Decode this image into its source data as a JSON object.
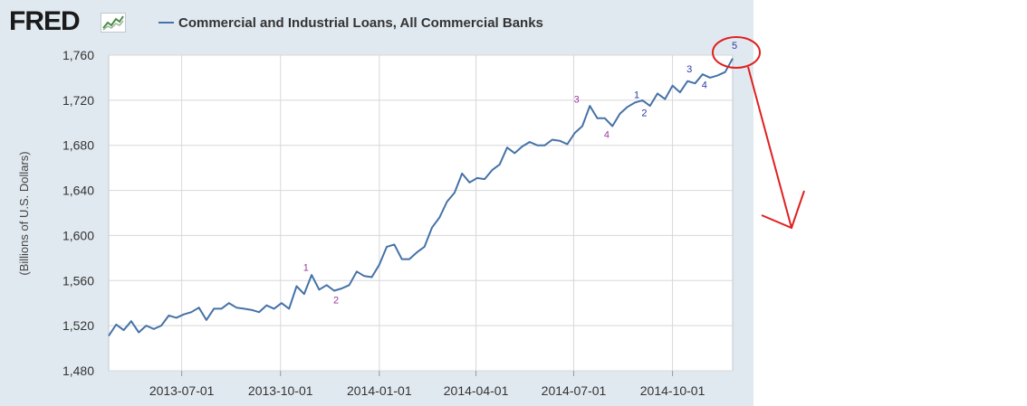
{
  "header": {
    "logo_text": "FRED",
    "legend_label": "Commercial and Industrial Loans, All Commercial Banks"
  },
  "colors": {
    "series": "#4572a7",
    "panel": "#e1e9f0",
    "annotation_purple": "#9b3a9b",
    "annotation_blue": "#2b3aa0",
    "annotation_red": "#e02020"
  },
  "chart_data": {
    "type": "line",
    "title": "",
    "xlabel": "",
    "ylabel": "(Billions of U.S. Dollars)",
    "ylim": [
      1480,
      1760
    ],
    "xlim": [
      "2013-04-24",
      "2014-11-26"
    ],
    "yticks": [
      "1,480",
      "1,520",
      "1,560",
      "1,600",
      "1,640",
      "1,680",
      "1,720",
      "1,760"
    ],
    "xticks": [
      "2013-07-01",
      "2013-10-01",
      "2014-01-01",
      "2014-04-01",
      "2014-07-01",
      "2014-10-01"
    ],
    "grid": true,
    "legend_position": "top",
    "series": [
      {
        "name": "Commercial and Industrial Loans, All Commercial Banks",
        "x": [
          "2013-04-24",
          "2013-05-01",
          "2013-05-08",
          "2013-05-15",
          "2013-05-22",
          "2013-05-29",
          "2013-06-05",
          "2013-06-12",
          "2013-06-19",
          "2013-06-26",
          "2013-07-03",
          "2013-07-10",
          "2013-07-17",
          "2013-07-24",
          "2013-07-31",
          "2013-08-07",
          "2013-08-14",
          "2013-08-21",
          "2013-08-28",
          "2013-09-04",
          "2013-09-11",
          "2013-09-18",
          "2013-09-25",
          "2013-10-02",
          "2013-10-09",
          "2013-10-16",
          "2013-10-23",
          "2013-10-30",
          "2013-11-06",
          "2013-11-13",
          "2013-11-20",
          "2013-11-27",
          "2013-12-04",
          "2013-12-11",
          "2013-12-18",
          "2013-12-25",
          "2014-01-01",
          "2014-01-08",
          "2014-01-15",
          "2014-01-22",
          "2014-01-29",
          "2014-02-05",
          "2014-02-12",
          "2014-02-19",
          "2014-02-26",
          "2014-03-05",
          "2014-03-12",
          "2014-03-19",
          "2014-03-26",
          "2014-04-02",
          "2014-04-09",
          "2014-04-16",
          "2014-04-23",
          "2014-04-30",
          "2014-05-07",
          "2014-05-14",
          "2014-05-21",
          "2014-05-28",
          "2014-06-04",
          "2014-06-11",
          "2014-06-18",
          "2014-06-25",
          "2014-07-02",
          "2014-07-09",
          "2014-07-16",
          "2014-07-23",
          "2014-07-30",
          "2014-08-06",
          "2014-08-13",
          "2014-08-20",
          "2014-08-27",
          "2014-09-03",
          "2014-09-10",
          "2014-09-17",
          "2014-09-24",
          "2014-10-01",
          "2014-10-08",
          "2014-10-15",
          "2014-10-22",
          "2014-10-29",
          "2014-11-05",
          "2014-11-12",
          "2014-11-19",
          "2014-11-26"
        ],
        "values": [
          1511,
          1521,
          1516,
          1524,
          1514,
          1520,
          1517,
          1520,
          1529,
          1527,
          1530,
          1532,
          1536,
          1525,
          1535,
          1535,
          1540,
          1536,
          1535,
          1534,
          1532,
          1538,
          1535,
          1540,
          1535,
          1555,
          1548,
          1565,
          1552,
          1556,
          1551,
          1553,
          1556,
          1568,
          1564,
          1563,
          1574,
          1590,
          1592,
          1579,
          1579,
          1585,
          1590,
          1607,
          1616,
          1630,
          1638,
          1655,
          1647,
          1651,
          1650,
          1658,
          1663,
          1678,
          1673,
          1679,
          1683,
          1680,
          1680,
          1685,
          1684,
          1681,
          1691,
          1697,
          1715,
          1704,
          1704,
          1697,
          1708,
          1714,
          1718,
          1720,
          1715,
          1726,
          1721,
          1733,
          1727,
          1737,
          1735,
          1743,
          1740,
          1742,
          1745,
          1757
        ]
      }
    ],
    "annotations": [
      {
        "text": "1",
        "x": "2013-10-23",
        "y": 1572,
        "color": "purple"
      },
      {
        "text": "2",
        "x": "2013-11-20",
        "y": 1543,
        "color": "purple"
      },
      {
        "text": "3",
        "x": "2014-07-02",
        "y": 1721,
        "color": "purple"
      },
      {
        "text": "4",
        "x": "2014-07-30",
        "y": 1690,
        "color": "purple"
      },
      {
        "text": "1",
        "x": "2014-08-27",
        "y": 1725,
        "color": "blue"
      },
      {
        "text": "2",
        "x": "2014-09-03",
        "y": 1709,
        "color": "blue"
      },
      {
        "text": "3",
        "x": "2014-10-15",
        "y": 1748,
        "color": "blue"
      },
      {
        "text": "4",
        "x": "2014-10-29",
        "y": 1734,
        "color": "blue"
      },
      {
        "text": "5",
        "x": "2014-11-26",
        "y": 1769,
        "color": "blue"
      }
    ]
  }
}
